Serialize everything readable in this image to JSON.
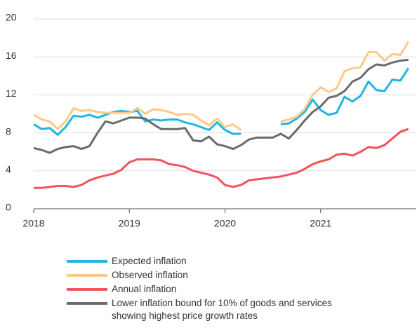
{
  "chart_data": {
    "type": "line",
    "x": [
      2018,
      2018.083,
      2018.167,
      2018.25,
      2018.333,
      2018.417,
      2018.5,
      2018.583,
      2018.667,
      2018.75,
      2018.833,
      2018.917,
      2019,
      2019.083,
      2019.167,
      2019.25,
      2019.333,
      2019.417,
      2019.5,
      2019.583,
      2019.667,
      2019.75,
      2019.833,
      2019.917,
      2020,
      2020.083,
      2020.167,
      2020.25,
      2020.333,
      2020.417,
      2020.5,
      2020.583,
      2020.667,
      2020.75,
      2020.833,
      2020.917,
      2021,
      2021.083,
      2021.167,
      2021.25,
      2021.333,
      2021.417,
      2021.5,
      2021.583,
      2021.667,
      2021.75,
      2021.833,
      2021.917
    ],
    "series": [
      {
        "name": "Expected inflation",
        "color": "#1fb5e6",
        "values": [
          8.9,
          8.4,
          8.5,
          7.8,
          8.6,
          9.8,
          9.7,
          9.9,
          9.6,
          9.9,
          10.2,
          10.3,
          10.2,
          10.3,
          9.2,
          9.4,
          9.3,
          9.4,
          9.4,
          9.1,
          8.9,
          8.6,
          8.3,
          9.1,
          8.3,
          7.9,
          7.9,
          null,
          null,
          null,
          null,
          8.9,
          9.0,
          9.5,
          10.2,
          11.5,
          10.4,
          9.9,
          10.1,
          11.8,
          11.3,
          11.9,
          13.4,
          12.5,
          12.4,
          13.6,
          13.5,
          14.8
        ]
      },
      {
        "name": "Observed inflation",
        "color": "#fdc98a",
        "values": [
          9.9,
          9.4,
          9.2,
          8.4,
          9.2,
          10.6,
          10.3,
          10.4,
          10.2,
          10.1,
          10.1,
          10.1,
          10.1,
          10.6,
          10.0,
          10.5,
          10.4,
          10.2,
          9.9,
          10.0,
          9.9,
          9.3,
          8.8,
          9.5,
          8.6,
          8.9,
          8.3,
          null,
          null,
          null,
          null,
          9.2,
          9.4,
          9.7,
          10.5,
          12.0,
          12.8,
          12.3,
          12.7,
          14.5,
          14.8,
          14.9,
          16.5,
          16.5,
          15.6,
          16.3,
          16.2,
          17.6
        ]
      },
      {
        "name": "Annual inflation",
        "color": "#f0545a",
        "values": [
          2.2,
          2.2,
          2.3,
          2.4,
          2.4,
          2.3,
          2.5,
          3.0,
          3.3,
          3.5,
          3.7,
          4.1,
          4.9,
          5.2,
          5.2,
          5.2,
          5.1,
          4.7,
          4.6,
          4.4,
          4.0,
          3.8,
          3.6,
          3.3,
          2.5,
          2.3,
          2.5,
          3.0,
          3.1,
          3.2,
          3.3,
          3.4,
          3.6,
          3.8,
          4.2,
          4.7,
          5.0,
          5.2,
          5.7,
          5.8,
          5.6,
          6.0,
          6.5,
          6.4,
          6.7,
          7.4,
          8.1,
          8.4
        ]
      },
      {
        "name": "Lower inflation bound for 10% of goods and services showing highest price growth rates",
        "color": "#6b6b6b",
        "values": [
          6.4,
          6.2,
          5.9,
          6.3,
          6.5,
          6.6,
          6.3,
          6.6,
          8.0,
          9.2,
          9.0,
          9.3,
          9.6,
          9.6,
          9.5,
          8.9,
          8.4,
          8.4,
          8.4,
          8.5,
          7.2,
          7.1,
          7.6,
          6.8,
          6.6,
          6.3,
          6.7,
          7.3,
          7.5,
          7.5,
          7.5,
          7.9,
          7.4,
          8.3,
          9.3,
          10.2,
          10.8,
          11.7,
          11.9,
          12.4,
          13.4,
          13.8,
          14.7,
          15.2,
          15.1,
          15.4,
          15.6,
          15.7
        ]
      }
    ],
    "xlim": [
      2018,
      2022
    ],
    "xticks": [
      2018,
      2019,
      2020,
      2021
    ],
    "ylim": [
      0,
      20
    ],
    "yticks": [
      0,
      4,
      8,
      12,
      16,
      20
    ],
    "grid": true
  }
}
